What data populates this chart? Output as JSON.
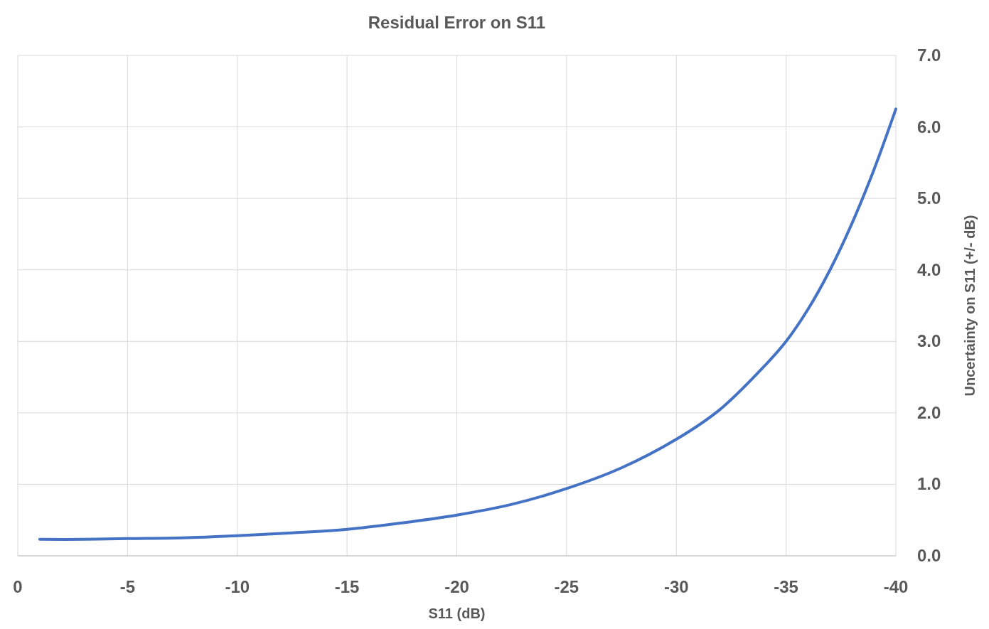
{
  "chart_data": {
    "type": "line",
    "title": "Residual Error on S11",
    "xlabel": "S11 (dB)",
    "ylabel": "Uncertainty on S11 (+/- dB)",
    "x": [
      -1,
      -3,
      -5,
      -7.5,
      -10,
      -12.5,
      -15,
      -17.5,
      -20,
      -22.5,
      -25,
      -27.5,
      -30,
      -32,
      -34,
      -35,
      -36,
      -37,
      -38,
      -39,
      -40
    ],
    "series": [
      {
        "color": "#4472c4",
        "values": [
          0.23,
          0.23,
          0.24,
          0.25,
          0.28,
          0.32,
          0.37,
          0.46,
          0.57,
          0.72,
          0.94,
          1.23,
          1.63,
          2.05,
          2.65,
          3.0,
          3.45,
          4.0,
          4.65,
          5.4,
          6.25
        ]
      }
    ],
    "xlim": [
      0,
      -40
    ],
    "xticks": [
      0,
      -5,
      -10,
      -15,
      -20,
      -25,
      -30,
      -35,
      -40
    ],
    "ylim": [
      0,
      7
    ],
    "yticks": [
      {
        "value": 0,
        "label": "0.0"
      },
      {
        "value": 1,
        "label": "1.0"
      },
      {
        "value": 2,
        "label": "2.0"
      },
      {
        "value": 3,
        "label": "3.0"
      },
      {
        "value": 4,
        "label": "4.0"
      },
      {
        "value": 5,
        "label": "5.0"
      },
      {
        "value": 6,
        "label": "6.0"
      },
      {
        "value": 7,
        "label": "7.0"
      }
    ],
    "grid": true,
    "marker": "none",
    "line_style": "solid"
  }
}
